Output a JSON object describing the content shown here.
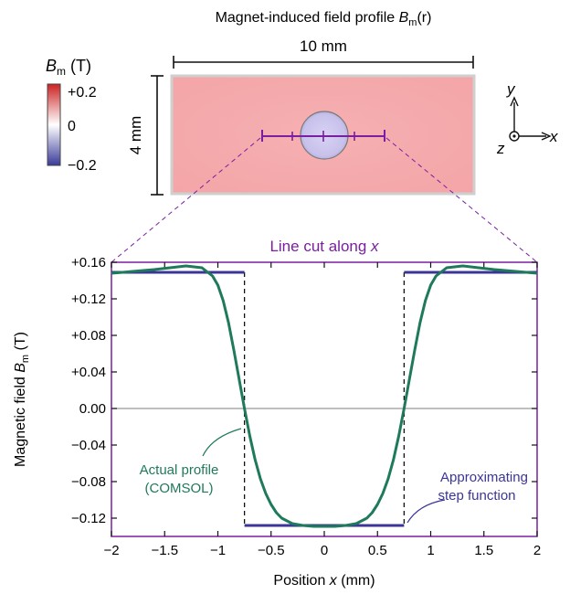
{
  "colors": {
    "actual_profile": "#1f7a5c",
    "step_function": "#3b3598",
    "purple_accent": "#7a1fa0",
    "zero_line": "#999999",
    "colorbar_top": "#cc2222",
    "colorbar_mid": "#ffffff",
    "colorbar_bottom": "#3a3a9a",
    "bar_fill": "#f3a4a6",
    "disk_fill": "#c8c2ec"
  },
  "top_panel": {
    "title_main": "Magnet-induced field profile ",
    "title_sym": "B",
    "title_sub": "m",
    "title_arg": "(r)",
    "width_label": "10 mm",
    "height_label": "4 mm",
    "colorbar": {
      "label_sym": "B",
      "label_sub": "m",
      "label_unit": " (T)",
      "ticks": [
        "+0.2",
        "0",
        "−0.2"
      ]
    },
    "axes": {
      "y": "y",
      "x": "x",
      "z": "z"
    }
  },
  "chart_data": {
    "type": "line",
    "title": "Line cut along x",
    "title_plain": "Line cut along ",
    "title_italic": "x",
    "xlabel": "Position x (mm)",
    "xlabel_plain": "Position ",
    "xlabel_italic": "x",
    "xlabel_unit": " (mm)",
    "ylabel": "Magnetic field Bm (T)",
    "ylabel_plain": "Magnetic field ",
    "ylabel_sym": "B",
    "ylabel_sub": "m",
    "ylabel_unit": " (T)",
    "xlim": [
      -2,
      2
    ],
    "ylim": [
      -0.14,
      0.16
    ],
    "x_ticks": [
      -2,
      -1.5,
      -1,
      -0.5,
      0,
      0.5,
      1,
      1.5,
      2
    ],
    "x_tick_labels": [
      "−2",
      "−1.5",
      "−1",
      "−0.5",
      "0",
      "0.5",
      "1",
      "1.5",
      "2"
    ],
    "y_ticks": [
      0.16,
      0.12,
      0.08,
      0.04,
      0.0,
      -0.04,
      -0.08,
      -0.12
    ],
    "y_tick_labels": [
      "+0.16",
      "+0.12",
      "+0.08",
      "+0.04",
      "0.00",
      "−0.04",
      "−0.08",
      "−0.12"
    ],
    "boundary_x": [
      -0.75,
      0.75
    ],
    "series": [
      {
        "name": "Actual profile (COMSOL)",
        "label_lines": [
          "Actual profile",
          "(COMSOL)"
        ],
        "x": [
          -2.0,
          -1.8,
          -1.6,
          -1.45,
          -1.3,
          -1.15,
          -1.05,
          -1.0,
          -0.95,
          -0.9,
          -0.85,
          -0.8,
          -0.75,
          -0.7,
          -0.65,
          -0.6,
          -0.55,
          -0.5,
          -0.45,
          -0.4,
          -0.3,
          -0.2,
          -0.1,
          0.0,
          0.1,
          0.2,
          0.3,
          0.4,
          0.45,
          0.5,
          0.55,
          0.6,
          0.65,
          0.7,
          0.75,
          0.8,
          0.85,
          0.9,
          0.95,
          1.0,
          1.05,
          1.15,
          1.3,
          1.45,
          1.6,
          1.8,
          2.0
        ],
        "y": [
          0.148,
          0.15,
          0.152,
          0.154,
          0.156,
          0.154,
          0.145,
          0.135,
          0.118,
          0.094,
          0.064,
          0.032,
          0.0,
          -0.03,
          -0.056,
          -0.077,
          -0.093,
          -0.105,
          -0.114,
          -0.12,
          -0.126,
          -0.128,
          -0.129,
          -0.129,
          -0.129,
          -0.128,
          -0.126,
          -0.12,
          -0.114,
          -0.105,
          -0.093,
          -0.077,
          -0.056,
          -0.03,
          0.0,
          0.032,
          0.064,
          0.094,
          0.118,
          0.135,
          0.145,
          0.154,
          0.156,
          0.154,
          0.152,
          0.15,
          0.148
        ]
      },
      {
        "name": "Approximating step function",
        "label_lines": [
          "Approximating",
          "step function"
        ],
        "x": [
          -2.0,
          -0.75,
          -0.75,
          0.75,
          0.75,
          2.0
        ],
        "y": [
          0.149,
          0.149,
          -0.128,
          -0.128,
          0.149,
          0.149
        ]
      }
    ]
  }
}
